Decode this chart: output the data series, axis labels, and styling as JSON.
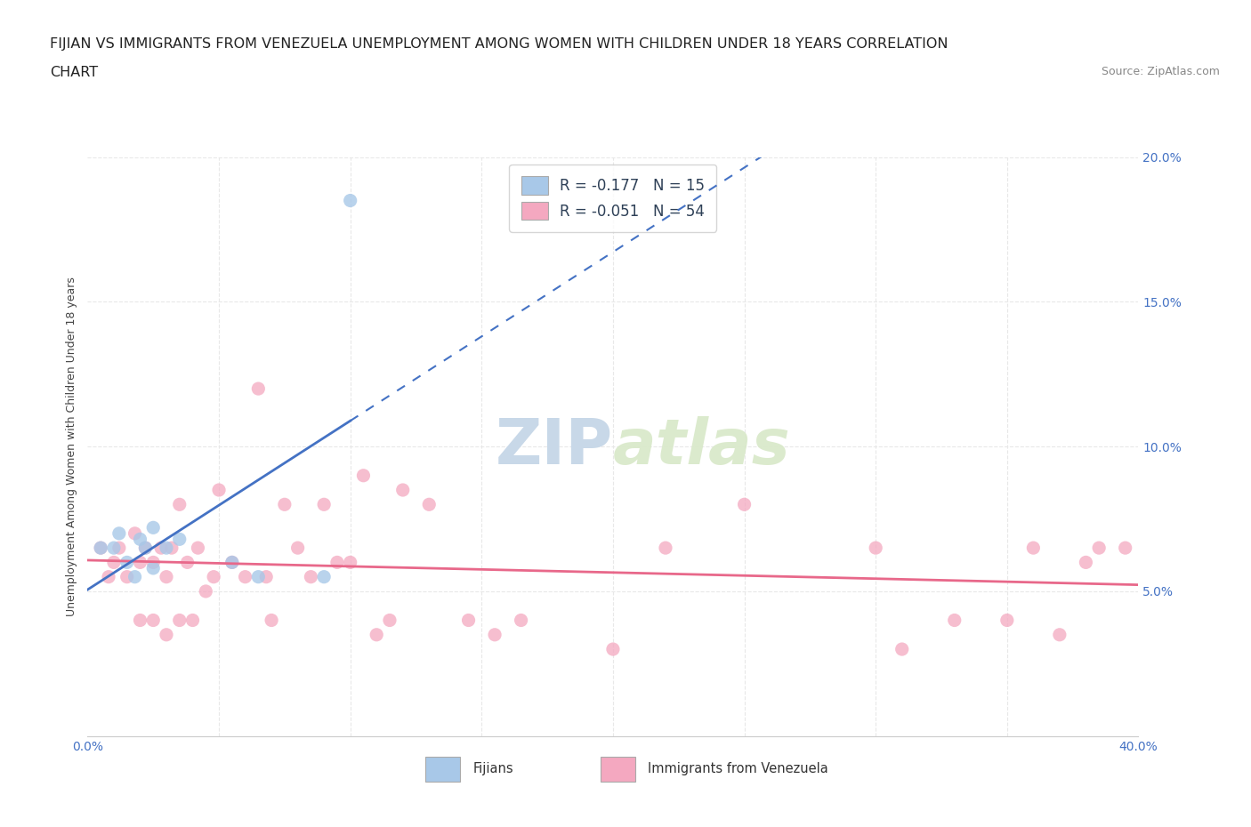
{
  "title_line1": "FIJIAN VS IMMIGRANTS FROM VENEZUELA UNEMPLOYMENT AMONG WOMEN WITH CHILDREN UNDER 18 YEARS CORRELATION",
  "title_line2": "CHART",
  "source_text": "Source: ZipAtlas.com",
  "ylabel": "Unemployment Among Women with Children Under 18 years",
  "xmin": 0.0,
  "xmax": 0.4,
  "ymin": 0.0,
  "ymax": 0.2,
  "x_ticks": [
    0.0,
    0.05,
    0.1,
    0.15,
    0.2,
    0.25,
    0.3,
    0.35,
    0.4
  ],
  "y_ticks": [
    0.0,
    0.05,
    0.1,
    0.15,
    0.2
  ],
  "fijian_color": "#a8c8e8",
  "venezuela_color": "#f4a8c0",
  "fijian_R": -0.177,
  "fijian_N": 15,
  "venezuela_R": -0.051,
  "venezuela_N": 54,
  "watermark_zip": "ZIP",
  "watermark_atlas": "atlas",
  "fijian_x": [
    0.005,
    0.01,
    0.012,
    0.015,
    0.018,
    0.02,
    0.022,
    0.025,
    0.025,
    0.03,
    0.035,
    0.055,
    0.065,
    0.09,
    0.1
  ],
  "fijian_y": [
    0.065,
    0.065,
    0.07,
    0.06,
    0.055,
    0.068,
    0.065,
    0.058,
    0.072,
    0.065,
    0.068,
    0.06,
    0.055,
    0.055,
    0.185
  ],
  "venezuela_x": [
    0.005,
    0.008,
    0.01,
    0.012,
    0.015,
    0.018,
    0.02,
    0.02,
    0.022,
    0.025,
    0.025,
    0.028,
    0.03,
    0.03,
    0.032,
    0.035,
    0.035,
    0.038,
    0.04,
    0.042,
    0.045,
    0.048,
    0.05,
    0.055,
    0.06,
    0.065,
    0.068,
    0.07,
    0.075,
    0.08,
    0.085,
    0.09,
    0.095,
    0.1,
    0.105,
    0.11,
    0.115,
    0.12,
    0.13,
    0.145,
    0.155,
    0.165,
    0.2,
    0.22,
    0.25,
    0.3,
    0.31,
    0.33,
    0.35,
    0.36,
    0.37,
    0.38,
    0.385,
    0.395
  ],
  "venezuela_y": [
    0.065,
    0.055,
    0.06,
    0.065,
    0.055,
    0.07,
    0.04,
    0.06,
    0.065,
    0.04,
    0.06,
    0.065,
    0.035,
    0.055,
    0.065,
    0.04,
    0.08,
    0.06,
    0.04,
    0.065,
    0.05,
    0.055,
    0.085,
    0.06,
    0.055,
    0.12,
    0.055,
    0.04,
    0.08,
    0.065,
    0.055,
    0.08,
    0.06,
    0.06,
    0.09,
    0.035,
    0.04,
    0.085,
    0.08,
    0.04,
    0.035,
    0.04,
    0.03,
    0.065,
    0.08,
    0.065,
    0.03,
    0.04,
    0.04,
    0.065,
    0.035,
    0.06,
    0.065,
    0.065
  ],
  "title_fontsize": 11.5,
  "axis_label_fontsize": 9,
  "tick_fontsize": 10,
  "source_fontsize": 9,
  "background_color": "#ffffff",
  "grid_color": "#e8e8e8",
  "grid_style": "--",
  "fijian_trend_color": "#4472c4",
  "venezuela_trend_color": "#e8688a",
  "tick_color": "#4472c4",
  "label_color": "#2e4057"
}
